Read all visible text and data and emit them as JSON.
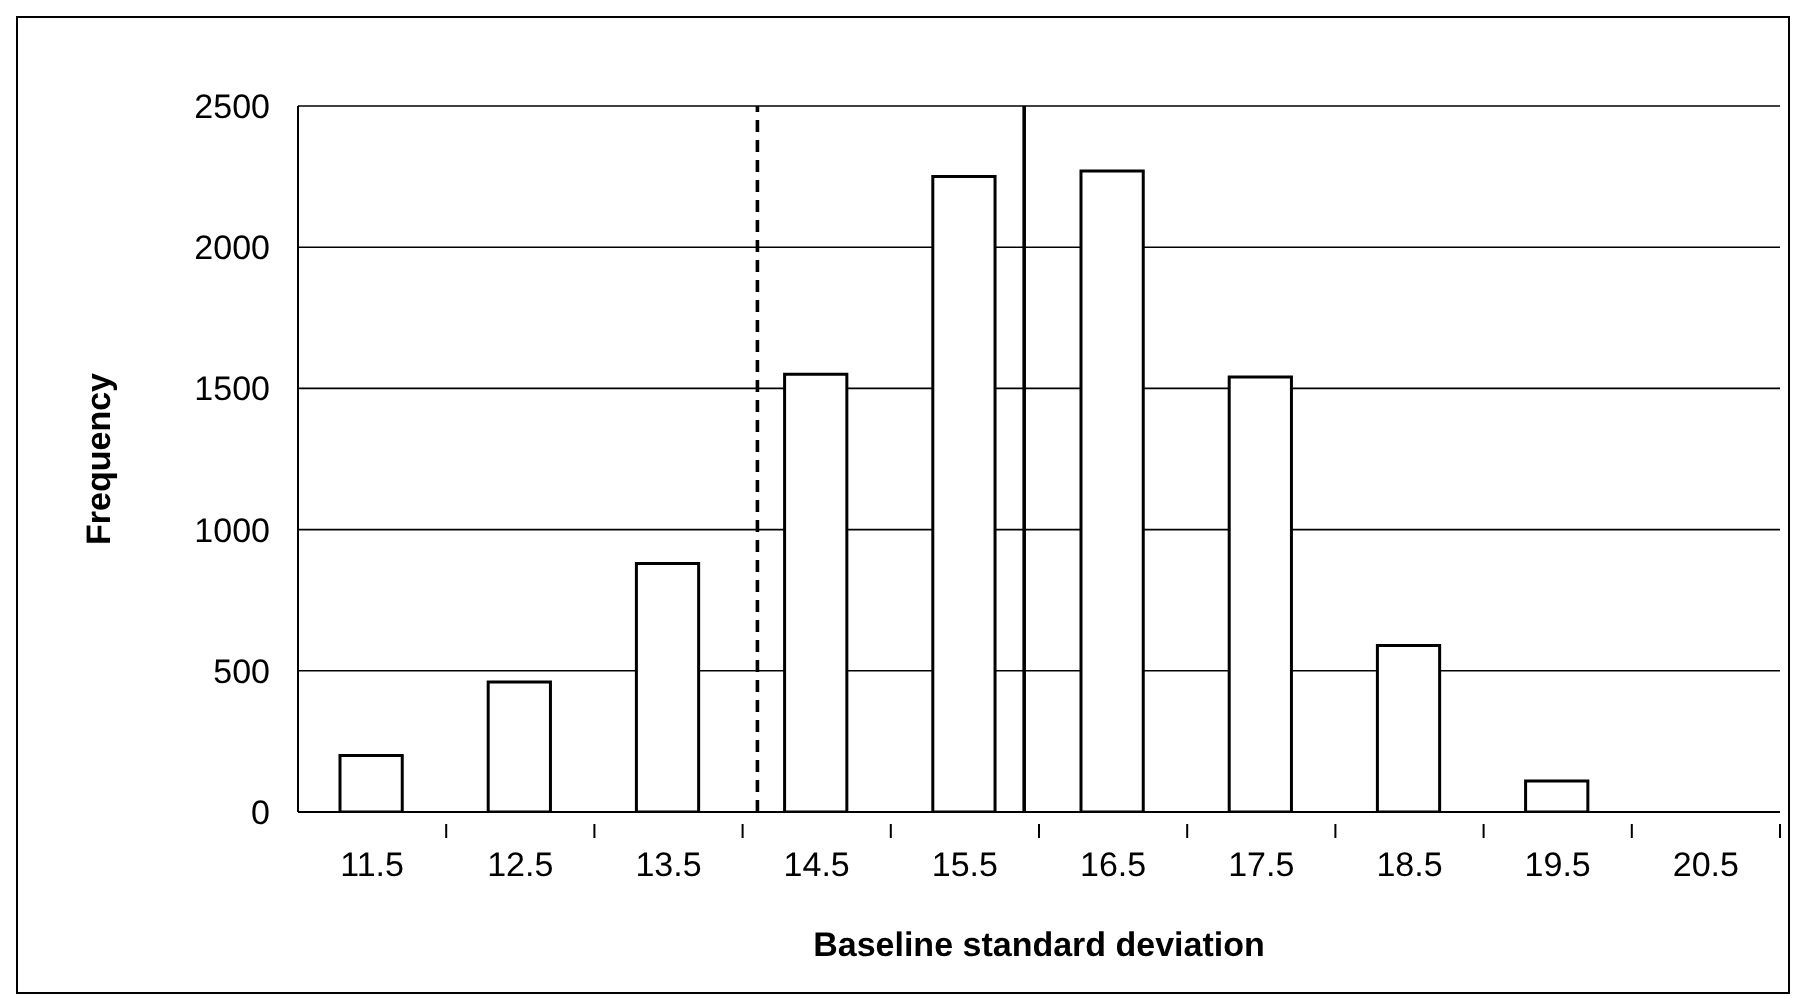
{
  "chart_data": {
    "type": "bar",
    "xlabel": "Baseline standard deviation",
    "ylabel": "Frequency",
    "x": [
      11.5,
      12.5,
      13.5,
      14.5,
      15.5,
      16.5,
      17.5,
      18.5,
      19.5,
      20.5
    ],
    "values": [
      200,
      460,
      880,
      1550,
      2250,
      2270,
      1540,
      590,
      110,
      0
    ],
    "color": "#ffffff",
    "xlim": [
      11,
      21
    ],
    "xticks": [
      11.5,
      12.5,
      13.5,
      14.5,
      15.5,
      16.5,
      17.5,
      18.5,
      19.5,
      20.5
    ],
    "ylim": [
      0,
      2500
    ],
    "yticks": [
      0,
      500,
      1000,
      1500,
      2000,
      2500
    ],
    "grid": "y",
    "ref_lines": [
      {
        "axis": "x",
        "value": 14.1,
        "line_style": "dashed",
        "color": "#000000"
      },
      {
        "axis": "x",
        "value": 15.9,
        "line_style": "solid",
        "color": "#000000"
      }
    ]
  }
}
